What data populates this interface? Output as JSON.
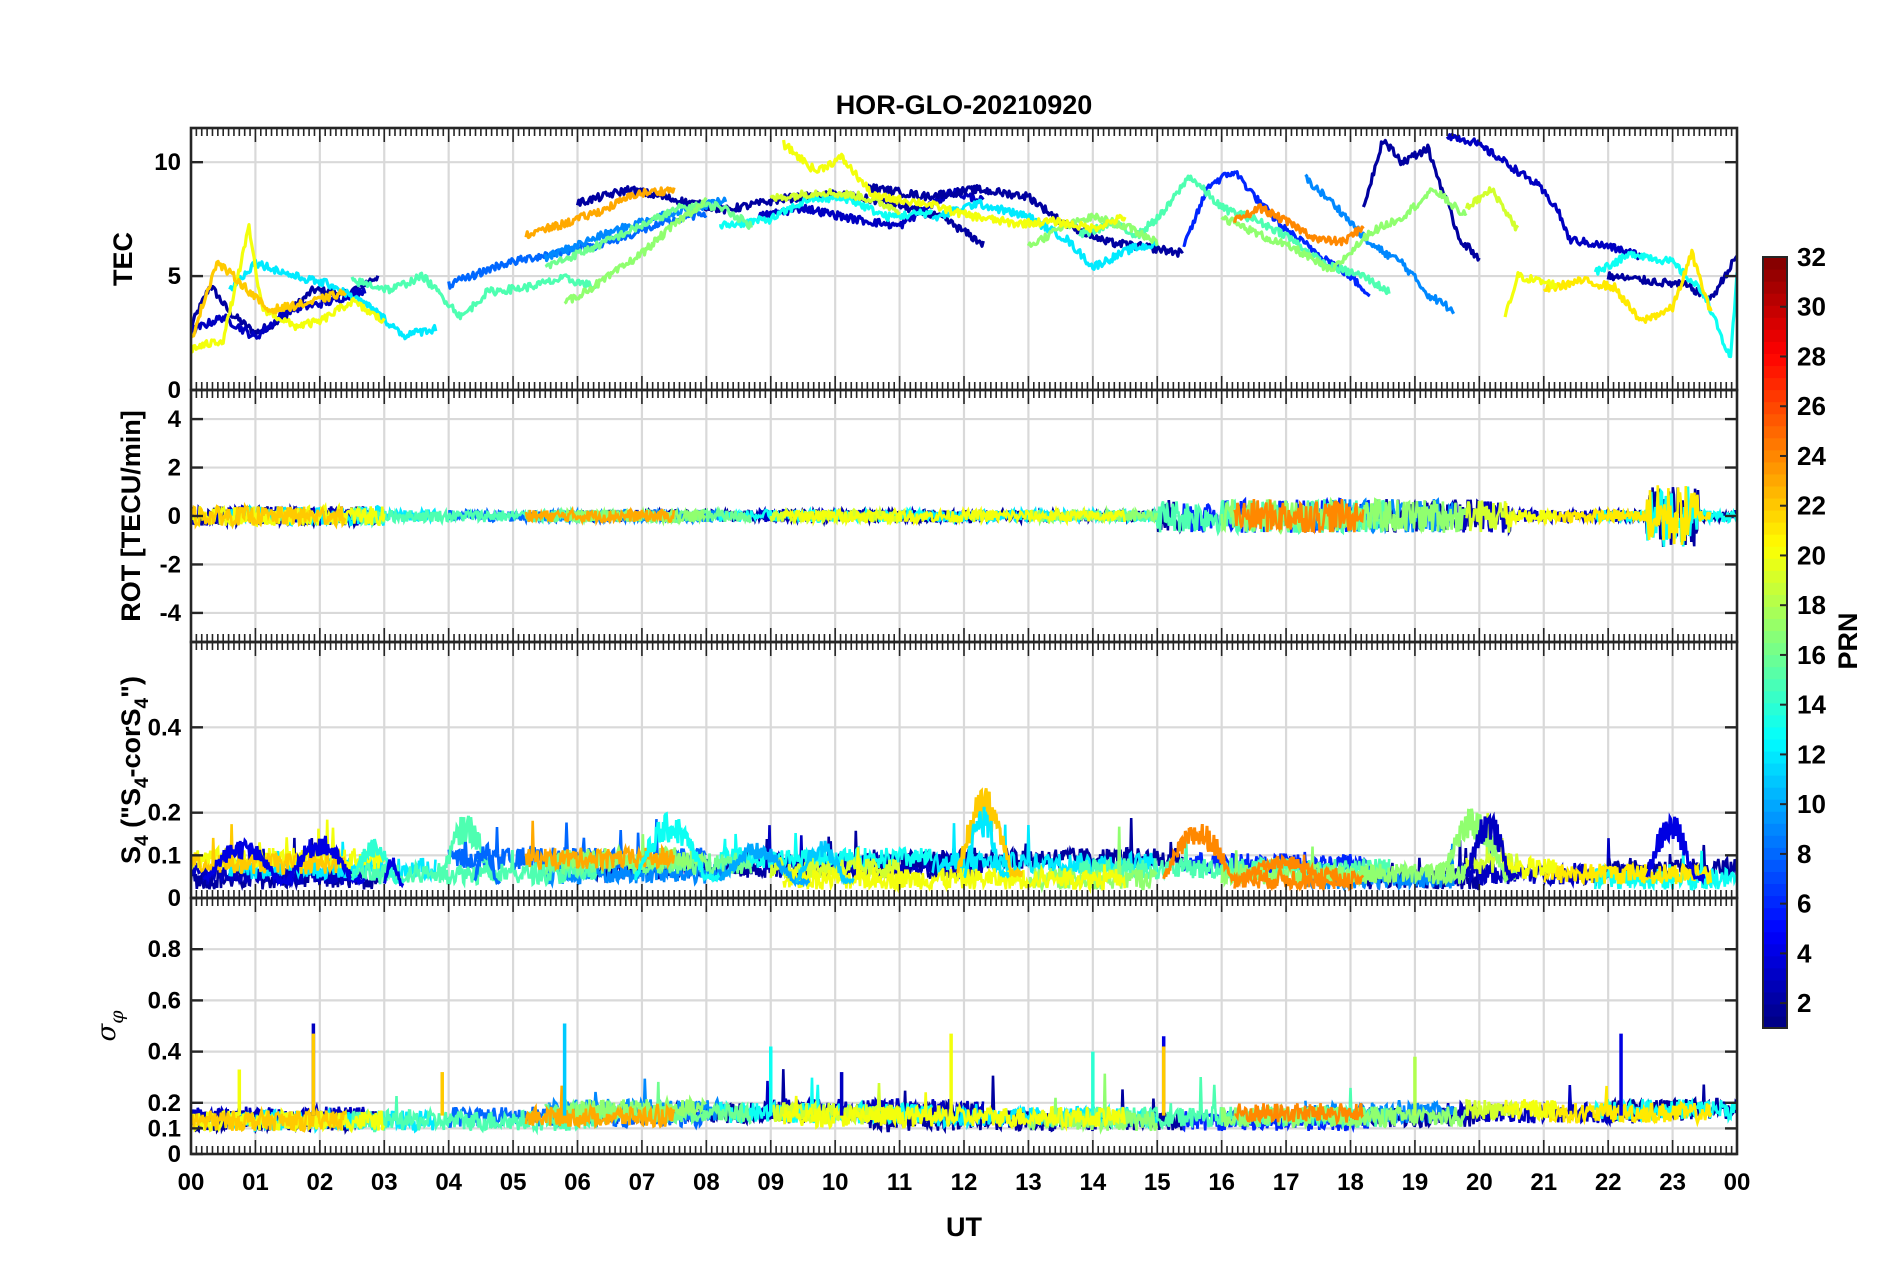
{
  "chart_data": {
    "type": "line",
    "title": "HOR-GLO-20210920",
    "xlabel": "UT",
    "x_tick_labels": [
      "00",
      "01",
      "02",
      "03",
      "04",
      "05",
      "06",
      "07",
      "08",
      "09",
      "10",
      "11",
      "12",
      "13",
      "14",
      "15",
      "16",
      "17",
      "18",
      "19",
      "20",
      "21",
      "22",
      "23",
      "00"
    ],
    "xlim": [
      0,
      24
    ],
    "panels": [
      {
        "id": "tec",
        "ylabel": "TEC",
        "ylim": [
          0,
          11.5
        ],
        "yticks": [
          0,
          5,
          10
        ],
        "ytick_labels": [
          "0",
          "5",
          "10"
        ]
      },
      {
        "id": "rot",
        "ylabel": "ROT [TECU/min]",
        "ylim": [
          -5.2,
          5.2
        ],
        "yticks": [
          -4,
          -2,
          0,
          2,
          4
        ],
        "ytick_labels": [
          "-4",
          "-2",
          "0",
          "2",
          "4"
        ]
      },
      {
        "id": "s4",
        "ylabel_main": "S",
        "ylabel_sub": "4",
        "ylabel_mid": " (\"S",
        "ylabel_sub2": "4",
        "ylabel_mid2": "-corS",
        "ylabel_sub3": "4",
        "ylabel_end": "\")",
        "ylim": [
          0,
          0.6
        ],
        "yticks": [
          0,
          0.1,
          0.2,
          0.4
        ],
        "ytick_labels": [
          "0",
          "0.1",
          "0.2",
          "0.4"
        ]
      },
      {
        "id": "sigma",
        "ylabel_main": "σ",
        "ylabel_sub": "φ",
        "ylim": [
          0,
          1.0
        ],
        "yticks": [
          0,
          0.1,
          0.2,
          0.4,
          0.6,
          0.8
        ],
        "ytick_labels": [
          "0",
          "0.1",
          "0.2",
          "0.4",
          "0.6",
          "0.8"
        ]
      }
    ],
    "colorbar": {
      "label": "PRN",
      "range": [
        1,
        32
      ],
      "ticks": [
        2,
        4,
        6,
        8,
        10,
        12,
        14,
        16,
        18,
        20,
        22,
        24,
        26,
        28,
        30,
        32
      ],
      "tick_labels": [
        "2",
        "4",
        "6",
        "8",
        "10",
        "12",
        "14",
        "16",
        "18",
        "20",
        "22",
        "24",
        "26",
        "28",
        "30",
        "32"
      ],
      "colormap": "jet"
    },
    "series": [
      {
        "prn": 2,
        "tec": [
          [
            0,
            2.8
          ],
          [
            0.3,
            4.6
          ],
          [
            0.6,
            3.4
          ],
          [
            1.0,
            2.5
          ],
          [
            1.4,
            3.1
          ],
          [
            1.9,
            4.4
          ],
          [
            2.4,
            4.2
          ],
          [
            2.9,
            5.0
          ]
        ]
      },
      {
        "prn": 3,
        "tec": [
          [
            0,
            2.6
          ],
          [
            0.5,
            3.2
          ],
          [
            1.0,
            2.3
          ],
          [
            1.5,
            3.5
          ],
          [
            2.2,
            3.9
          ],
          [
            2.7,
            4.4
          ]
        ]
      },
      {
        "prn": 2,
        "tec": [
          [
            6.0,
            8.2
          ],
          [
            6.8,
            8.8
          ],
          [
            7.6,
            8.3
          ],
          [
            8.3,
            7.9
          ],
          [
            9.2,
            8.4
          ],
          [
            10.1,
            8.6
          ],
          [
            11.0,
            8.1
          ],
          [
            11.7,
            7.5
          ],
          [
            12.3,
            6.4
          ]
        ]
      },
      {
        "prn": 3,
        "tec": [
          [
            8.8,
            7.6
          ],
          [
            9.5,
            8.0
          ],
          [
            10.3,
            7.5
          ],
          [
            11.0,
            7.2
          ],
          [
            11.8,
            8.7
          ],
          [
            12.3,
            8.3
          ]
        ]
      },
      {
        "prn": 2,
        "tec": [
          [
            10.5,
            8.9
          ],
          [
            11.4,
            8.5
          ],
          [
            12.2,
            8.8
          ],
          [
            13.0,
            8.5
          ],
          [
            13.5,
            7.4
          ],
          [
            14.2,
            6.5
          ],
          [
            15.0,
            6.2
          ],
          [
            15.4,
            6.0
          ]
        ]
      },
      {
        "prn": 2,
        "tec": [
          [
            18.2,
            8.0
          ],
          [
            18.5,
            11.0
          ],
          [
            18.8,
            10.0
          ],
          [
            19.2,
            10.6
          ],
          [
            19.4,
            9.0
          ],
          [
            19.7,
            6.6
          ],
          [
            20.0,
            5.8
          ]
        ]
      },
      {
        "prn": 3,
        "tec": [
          [
            19.5,
            11.2
          ],
          [
            19.9,
            10.9
          ],
          [
            20.3,
            10.2
          ],
          [
            20.9,
            9.0
          ],
          [
            21.2,
            8.0
          ],
          [
            21.4,
            6.6
          ],
          [
            22.0,
            6.3
          ],
          [
            22.5,
            5.9
          ]
        ]
      },
      {
        "prn": 2,
        "tec": [
          [
            22.0,
            5.0
          ],
          [
            22.6,
            4.8
          ],
          [
            23.2,
            4.6
          ],
          [
            23.6,
            4.0
          ],
          [
            24.0,
            5.9
          ]
        ]
      },
      {
        "prn": 6,
        "tec": [
          [
            15.4,
            6.2
          ],
          [
            15.8,
            9.0
          ],
          [
            16.2,
            9.6
          ],
          [
            16.6,
            8.2
          ],
          [
            17.0,
            7.0
          ],
          [
            17.5,
            6.0
          ],
          [
            17.9,
            5.2
          ],
          [
            18.3,
            4.2
          ]
        ]
      },
      {
        "prn": 8,
        "tec": [
          [
            4.0,
            4.6
          ],
          [
            4.8,
            5.5
          ],
          [
            5.6,
            6.0
          ],
          [
            6.4,
            6.4
          ],
          [
            7.2,
            7.2
          ],
          [
            8.0,
            7.8
          ]
        ]
      },
      {
        "prn": 9,
        "tec": [
          [
            17.3,
            9.3
          ],
          [
            17.8,
            8.0
          ],
          [
            18.3,
            6.4
          ],
          [
            18.8,
            5.6
          ],
          [
            19.2,
            4.2
          ],
          [
            19.6,
            3.5
          ]
        ]
      },
      {
        "prn": 9,
        "tec": [
          [
            5.5,
            5.8
          ],
          [
            6.3,
            6.7
          ],
          [
            7.0,
            7.4
          ],
          [
            7.6,
            7.9
          ],
          [
            8.3,
            8.3
          ]
        ]
      },
      {
        "prn": 12,
        "tec": [
          [
            0.6,
            4.4
          ],
          [
            1.0,
            5.6
          ],
          [
            1.6,
            5.0
          ],
          [
            2.2,
            4.6
          ],
          [
            2.8,
            3.6
          ],
          [
            3.3,
            2.4
          ],
          [
            3.8,
            2.7
          ]
        ]
      },
      {
        "prn": 12,
        "tec": [
          [
            11.5,
            7.5
          ],
          [
            12.2,
            8.2
          ],
          [
            13.0,
            7.6
          ],
          [
            13.6,
            6.6
          ],
          [
            14.0,
            5.4
          ],
          [
            14.6,
            6.2
          ],
          [
            15.0,
            6.4
          ]
        ]
      },
      {
        "prn": 13,
        "tec": [
          [
            8.2,
            7.2
          ],
          [
            9.0,
            7.5
          ],
          [
            9.6,
            8.4
          ],
          [
            10.2,
            8.4
          ],
          [
            10.8,
            7.6
          ],
          [
            11.5,
            7.8
          ]
        ]
      },
      {
        "prn": 13,
        "tec": [
          [
            21.8,
            5.2
          ],
          [
            22.4,
            6.0
          ],
          [
            23.0,
            5.6
          ],
          [
            23.5,
            4.2
          ],
          [
            23.9,
            1.3
          ],
          [
            24.0,
            5.0
          ]
        ]
      },
      {
        "prn": 15,
        "tec": [
          [
            2.5,
            4.8
          ],
          [
            3.1,
            4.4
          ],
          [
            3.6,
            5.0
          ],
          [
            4.2,
            3.2
          ],
          [
            4.6,
            4.3
          ],
          [
            5.2,
            4.5
          ],
          [
            5.8,
            4.9
          ],
          [
            6.3,
            4.5
          ]
        ]
      },
      {
        "prn": 15,
        "tec": [
          [
            13.8,
            6.8
          ],
          [
            14.3,
            7.3
          ],
          [
            14.7,
            6.8
          ],
          [
            15.1,
            7.8
          ],
          [
            15.5,
            9.4
          ],
          [
            16.0,
            8.0
          ],
          [
            16.5,
            7.5
          ],
          [
            17.0,
            6.8
          ],
          [
            17.6,
            5.5
          ],
          [
            18.2,
            5.0
          ],
          [
            18.6,
            4.3
          ]
        ]
      },
      {
        "prn": 16,
        "tec": [
          [
            5.5,
            5.4
          ],
          [
            6.2,
            6.2
          ],
          [
            6.9,
            7.1
          ],
          [
            7.6,
            8.0
          ],
          [
            8.2,
            8.1
          ],
          [
            8.7,
            7.2
          ]
        ]
      },
      {
        "prn": 17,
        "tec": [
          [
            5.8,
            3.8
          ],
          [
            6.4,
            4.8
          ],
          [
            7.0,
            6.0
          ],
          [
            7.6,
            7.5
          ],
          [
            8.0,
            8.3
          ]
        ]
      },
      {
        "prn": 17,
        "tec": [
          [
            13.0,
            6.3
          ],
          [
            13.5,
            7.1
          ],
          [
            14.0,
            7.6
          ],
          [
            14.5,
            7.2
          ],
          [
            15.0,
            6.5
          ]
        ]
      },
      {
        "prn": 17,
        "tec": [
          [
            16.0,
            7.6
          ],
          [
            16.6,
            6.8
          ],
          [
            17.2,
            6.1
          ],
          [
            17.7,
            5.2
          ],
          [
            18.3,
            6.9
          ],
          [
            18.8,
            7.6
          ],
          [
            19.3,
            8.8
          ],
          [
            19.8,
            7.6
          ]
        ]
      },
      {
        "prn": 19,
        "tec": [
          [
            9.0,
            8.4
          ],
          [
            9.8,
            8.7
          ],
          [
            10.4,
            8.5
          ],
          [
            11.0,
            7.9
          ]
        ]
      },
      {
        "prn": 19,
        "tec": [
          [
            19.8,
            8.0
          ],
          [
            20.2,
            8.8
          ],
          [
            20.6,
            7.0
          ]
        ]
      },
      {
        "prn": 20,
        "tec": [
          [
            0,
            1.8
          ],
          [
            0.5,
            2.2
          ],
          [
            0.9,
            7.1
          ],
          [
            1.1,
            3.6
          ],
          [
            1.6,
            2.8
          ],
          [
            2.0,
            3.0
          ],
          [
            2.5,
            3.9
          ],
          [
            3.0,
            3.0
          ]
        ]
      },
      {
        "prn": 20,
        "tec": [
          [
            9.2,
            10.8
          ],
          [
            9.7,
            9.6
          ],
          [
            10.1,
            10.2
          ],
          [
            10.6,
            8.5
          ],
          [
            11.4,
            8.2
          ],
          [
            12.0,
            7.7
          ],
          [
            12.8,
            7.3
          ],
          [
            13.4,
            7.4
          ],
          [
            14.0,
            7.1
          ],
          [
            14.5,
            7.6
          ]
        ]
      },
      {
        "prn": 21,
        "tec": [
          [
            21.0,
            4.4
          ],
          [
            21.6,
            4.8
          ],
          [
            22.1,
            4.5
          ],
          [
            22.5,
            3.0
          ],
          [
            23.0,
            3.6
          ],
          [
            23.3,
            6.0
          ],
          [
            23.6,
            3.3
          ]
        ]
      },
      {
        "prn": 20,
        "tec": [
          [
            20.4,
            3.2
          ],
          [
            20.6,
            5.0
          ],
          [
            21.2,
            4.6
          ]
        ]
      },
      {
        "prn": 22,
        "tec": [
          [
            0,
            2.2
          ],
          [
            0.4,
            5.6
          ],
          [
            0.7,
            4.9
          ],
          [
            1.2,
            3.5
          ],
          [
            1.8,
            3.8
          ],
          [
            2.4,
            4.3
          ]
        ]
      },
      {
        "prn": 23,
        "tec": [
          [
            5.2,
            6.8
          ],
          [
            5.8,
            7.3
          ],
          [
            6.4,
            7.9
          ],
          [
            6.9,
            8.6
          ],
          [
            7.5,
            8.8
          ]
        ]
      },
      {
        "prn": 24,
        "tec": [
          [
            16.2,
            7.4
          ],
          [
            16.6,
            8.0
          ],
          [
            17.0,
            7.4
          ],
          [
            17.5,
            6.6
          ],
          [
            17.9,
            6.5
          ],
          [
            18.2,
            7.2
          ]
        ]
      }
    ]
  }
}
